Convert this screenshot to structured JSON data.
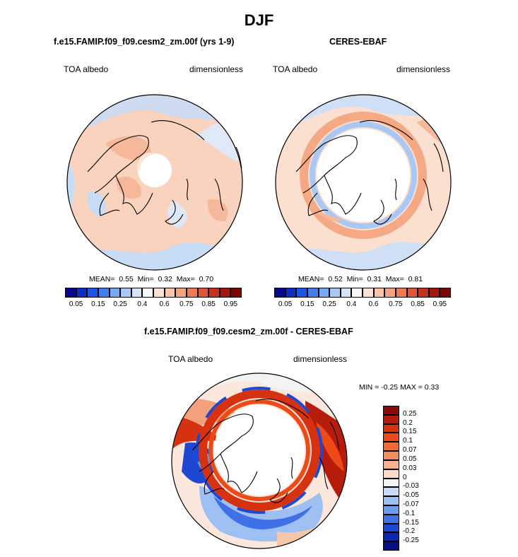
{
  "title": "DJF",
  "panels": {
    "model": {
      "title": "f.e15.FAMIP.f09_f09.cesm2_zm.00f (yrs 1-9)",
      "variable": "TOA albedo",
      "units": "dimensionless",
      "mean_label": "MEAN=",
      "mean": "0.55",
      "min_label": "Min=",
      "min": "0.32",
      "max_label": "Max=",
      "max": "0.70"
    },
    "obs": {
      "title": "CERES-EBAF",
      "variable": "TOA albedo",
      "units": "dimensionless",
      "mean_label": "MEAN=",
      "mean": "0.52",
      "min_label": "Min=",
      "min": "0.31",
      "max_label": "Max=",
      "max": "0.81"
    },
    "diff": {
      "title": "f.e15.FAMIP.f09_f09.cesm2_zm.00f - CERES-EBAF",
      "variable": "TOA albedo",
      "units": "dimensionless",
      "minmax_text": "MIN = -0.25 MAX = 0.33"
    }
  },
  "abs_colorbar": {
    "labels": [
      "0.05",
      "0.15",
      "0.25",
      "0.4",
      "0.6",
      "0.75",
      "0.85",
      "0.95"
    ],
    "colors": [
      "#08088f",
      "#0b2fc2",
      "#1c55e6",
      "#3f7ff0",
      "#77a8f3",
      "#a9c8f4",
      "#d4e4f6",
      "#f7f7f7",
      "#fbe2d2",
      "#f9c6ab",
      "#f4a380",
      "#ee7a56",
      "#e05536",
      "#c43320",
      "#a11812",
      "#7a0606"
    ]
  },
  "diff_colorbar": {
    "labels": [
      "0.25",
      "0.2",
      "0.15",
      "0.1",
      "0.07",
      "0.05",
      "0.03",
      "0",
      "-0.03",
      "-0.05",
      "-0.07",
      "-0.1",
      "-0.15",
      "-0.2",
      "-0.25"
    ],
    "colors": [
      "#8c0a0a",
      "#b51c0c",
      "#d6320f",
      "#ee4a17",
      "#f26a38",
      "#f48c5e",
      "#f7b290",
      "#fcdcc7",
      "#f3f3f3",
      "#c9dbf5",
      "#9ebff2",
      "#6f9bee",
      "#3f70e6",
      "#1d48d3",
      "#0b26a8",
      "#070f85"
    ]
  }
}
